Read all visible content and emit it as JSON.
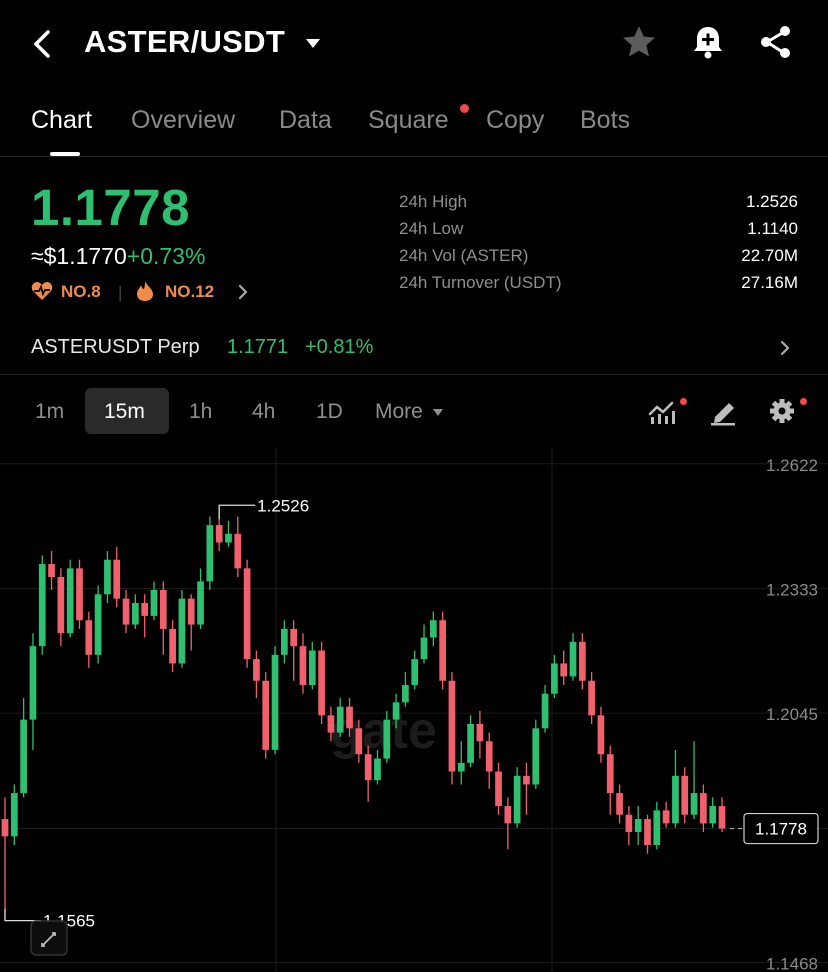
{
  "header": {
    "title": "ASTER/USDT",
    "icons": [
      "back-arrow-icon",
      "chevron-down-icon",
      "star-icon",
      "bell-plus-icon",
      "share-icon"
    ]
  },
  "tabs": [
    {
      "label": "Chart",
      "active": true
    },
    {
      "label": "Overview"
    },
    {
      "label": "Data"
    },
    {
      "label": "Square",
      "has_dot": true
    },
    {
      "label": "Copy"
    },
    {
      "label": "Bots"
    }
  ],
  "ticker": {
    "last_price": "1.1778",
    "usd_price": "≈$1.1770",
    "change_pct": "+0.73%",
    "rank_1": "NO.8",
    "rank_2": "NO.12"
  },
  "stats": [
    {
      "label": "24h High",
      "value": "1.2526"
    },
    {
      "label": "24h Low",
      "value": "1.1140"
    },
    {
      "label": "24h Vol (ASTER)",
      "value": "22.70M"
    },
    {
      "label": "24h Turnover (USDT)",
      "value": "27.16M"
    }
  ],
  "perp": {
    "name": "ASTERUSDT Perp",
    "price": "1.1771",
    "change": "+0.81%"
  },
  "intervals": [
    {
      "label": "1m"
    },
    {
      "label": "15m",
      "active": true
    },
    {
      "label": "1h"
    },
    {
      "label": "4h"
    },
    {
      "label": "1D"
    },
    {
      "label": "More"
    }
  ],
  "colors": {
    "up": "#2fbf71",
    "down": "#f0616d",
    "accent_dot": "#f04a4a",
    "rank": "#f08c4a"
  },
  "chart_data": {
    "type": "candlestick",
    "interval": "15m",
    "y_ticks": [
      1.2622,
      1.2333,
      1.2045,
      1.1778,
      1.1468
    ],
    "y_tick_labels": [
      "1.2622",
      "1.2333",
      "1.2045",
      "1.1468"
    ],
    "ylim": [
      1.146,
      1.264
    ],
    "last_price_label": "1.1778",
    "high_label": "1.2526",
    "low_label": "1.1565",
    "watermark": "gate",
    "candles": [
      [
        1.18,
        1.176,
        1.185,
        1.1565
      ],
      [
        1.176,
        1.186,
        1.188,
        1.174
      ],
      [
        1.186,
        1.203,
        1.208,
        1.185
      ],
      [
        1.203,
        1.22,
        1.223,
        1.196
      ],
      [
        1.22,
        1.239,
        1.241,
        1.218
      ],
      [
        1.239,
        1.236,
        1.242,
        1.233
      ],
      [
        1.236,
        1.223,
        1.238,
        1.22
      ],
      [
        1.223,
        1.238,
        1.24,
        1.222
      ],
      [
        1.238,
        1.226,
        1.24,
        1.224
      ],
      [
        1.226,
        1.218,
        1.228,
        1.215
      ],
      [
        1.218,
        1.232,
        1.234,
        1.216
      ],
      [
        1.232,
        1.24,
        1.242,
        1.23
      ],
      [
        1.24,
        1.231,
        1.243,
        1.229
      ],
      [
        1.231,
        1.225,
        1.233,
        1.223
      ],
      [
        1.225,
        1.23,
        1.232,
        1.224
      ],
      [
        1.23,
        1.227,
        1.232,
        1.222
      ],
      [
        1.227,
        1.233,
        1.235,
        1.226
      ],
      [
        1.233,
        1.224,
        1.235,
        1.218
      ],
      [
        1.224,
        1.216,
        1.226,
        1.214
      ],
      [
        1.216,
        1.231,
        1.233,
        1.215
      ],
      [
        1.231,
        1.225,
        1.232,
        1.219
      ],
      [
        1.225,
        1.235,
        1.238,
        1.224
      ],
      [
        1.235,
        1.248,
        1.25,
        1.233
      ],
      [
        1.248,
        1.244,
        1.2526,
        1.242
      ],
      [
        1.244,
        1.246,
        1.249,
        1.243
      ],
      [
        1.246,
        1.238,
        1.25,
        1.236
      ],
      [
        1.238,
        1.217,
        1.24,
        1.215
      ],
      [
        1.217,
        1.212,
        1.219,
        1.208
      ],
      [
        1.212,
        1.196,
        1.214,
        1.194
      ],
      [
        1.196,
        1.218,
        1.22,
        1.195
      ],
      [
        1.218,
        1.224,
        1.226,
        1.216
      ],
      [
        1.224,
        1.22,
        1.226,
        1.212
      ],
      [
        1.22,
        1.211,
        1.223,
        1.209
      ],
      [
        1.211,
        1.219,
        1.221,
        1.21
      ],
      [
        1.219,
        1.204,
        1.221,
        1.202
      ],
      [
        1.204,
        1.2,
        1.206,
        1.198
      ],
      [
        1.2,
        1.206,
        1.208,
        1.199
      ],
      [
        1.206,
        1.201,
        1.208,
        1.199
      ],
      [
        1.201,
        1.195,
        1.203,
        1.193
      ],
      [
        1.195,
        1.189,
        1.197,
        1.184
      ],
      [
        1.189,
        1.194,
        1.196,
        1.188
      ],
      [
        1.194,
        1.203,
        1.205,
        1.193
      ],
      [
        1.203,
        1.207,
        1.209,
        1.201
      ],
      [
        1.207,
        1.211,
        1.214,
        1.206
      ],
      [
        1.211,
        1.217,
        1.219,
        1.21
      ],
      [
        1.217,
        1.222,
        1.225,
        1.216
      ],
      [
        1.222,
        1.226,
        1.228,
        1.22
      ],
      [
        1.226,
        1.212,
        1.228,
        1.21
      ],
      [
        1.212,
        1.191,
        1.214,
        1.188
      ],
      [
        1.191,
        1.193,
        1.198,
        1.188
      ],
      [
        1.193,
        1.202,
        1.204,
        1.192
      ],
      [
        1.202,
        1.198,
        1.205,
        1.194
      ],
      [
        1.198,
        1.191,
        1.2,
        1.187
      ],
      [
        1.191,
        1.183,
        1.193,
        1.181
      ],
      [
        1.183,
        1.179,
        1.185,
        1.173
      ],
      [
        1.179,
        1.19,
        1.192,
        1.178
      ],
      [
        1.19,
        1.188,
        1.193,
        1.181
      ],
      [
        1.188,
        1.201,
        1.203,
        1.187
      ],
      [
        1.201,
        1.209,
        1.211,
        1.2
      ],
      [
        1.209,
        1.216,
        1.218,
        1.208
      ],
      [
        1.216,
        1.213,
        1.219,
        1.211
      ],
      [
        1.213,
        1.221,
        1.223,
        1.212
      ],
      [
        1.221,
        1.212,
        1.223,
        1.21
      ],
      [
        1.212,
        1.204,
        1.214,
        1.202
      ],
      [
        1.204,
        1.195,
        1.206,
        1.193
      ],
      [
        1.195,
        1.186,
        1.197,
        1.181
      ],
      [
        1.186,
        1.181,
        1.188,
        1.179
      ],
      [
        1.181,
        1.177,
        1.183,
        1.174
      ],
      [
        1.177,
        1.18,
        1.183,
        1.174
      ],
      [
        1.18,
        1.174,
        1.181,
        1.172
      ],
      [
        1.174,
        1.182,
        1.184,
        1.173
      ],
      [
        1.182,
        1.179,
        1.184,
        1.178
      ],
      [
        1.179,
        1.19,
        1.196,
        1.178
      ],
      [
        1.19,
        1.181,
        1.192,
        1.179
      ],
      [
        1.181,
        1.186,
        1.198,
        1.18
      ],
      [
        1.186,
        1.179,
        1.188,
        1.177
      ],
      [
        1.179,
        1.183,
        1.185,
        1.178
      ],
      [
        1.183,
        1.1778,
        1.185,
        1.177
      ]
    ]
  }
}
